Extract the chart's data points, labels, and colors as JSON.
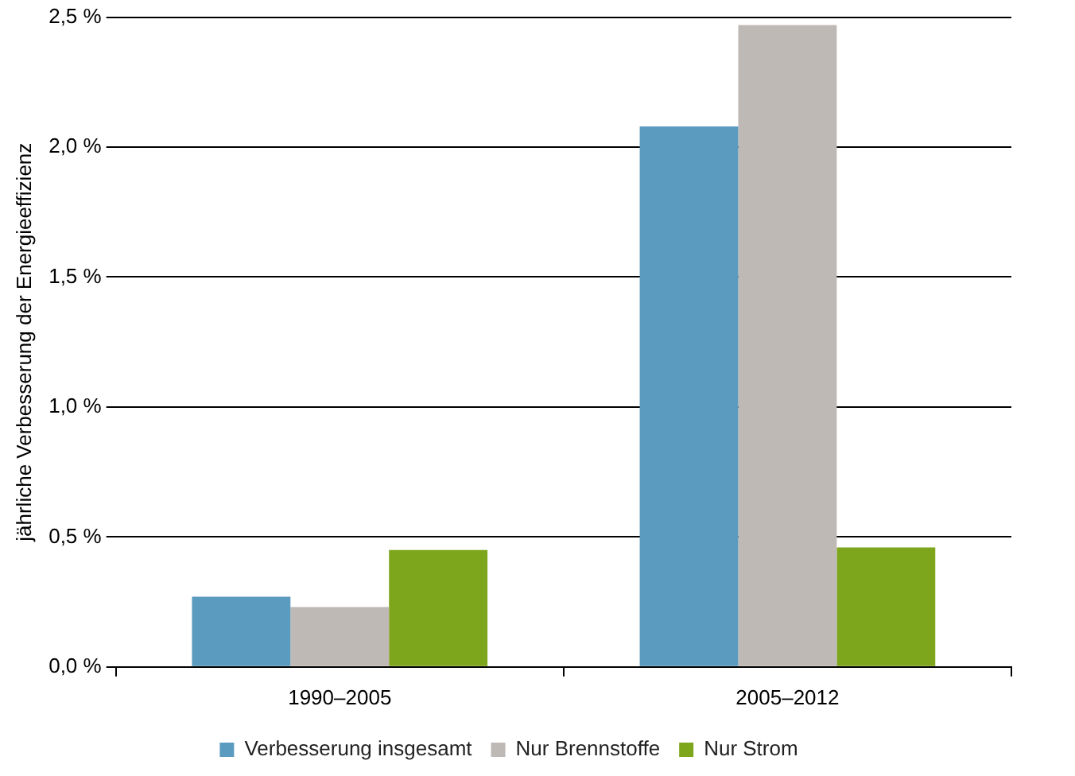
{
  "chart_data": {
    "type": "bar",
    "ylabel": "jährliche Verbesserung der Energieeffizienz",
    "categories": [
      "1990–2005",
      "2005–2012"
    ],
    "series": [
      {
        "name": "Verbesserung insgesamt",
        "color": "#5b9bbf",
        "values": [
          0.27,
          2.08
        ]
      },
      {
        "name": "Nur Brennstoffe",
        "color": "#bfb9b5",
        "values": [
          0.23,
          2.47
        ]
      },
      {
        "name": "Nur Strom",
        "color": "#7ea61c",
        "values": [
          0.45,
          0.46
        ]
      }
    ],
    "ylim": [
      0,
      2.5
    ],
    "yticks": [
      {
        "value": 0,
        "label": "0,0 %"
      },
      {
        "value": 0.5,
        "label": "0,5 %"
      },
      {
        "value": 1,
        "label": "1,0 %"
      },
      {
        "value": 1.5,
        "label": "1,5 %"
      },
      {
        "value": 2,
        "label": "2,0 %"
      },
      {
        "value": 2.5,
        "label": "2,5 %"
      }
    ],
    "grid": "y",
    "legend": "bottom"
  }
}
